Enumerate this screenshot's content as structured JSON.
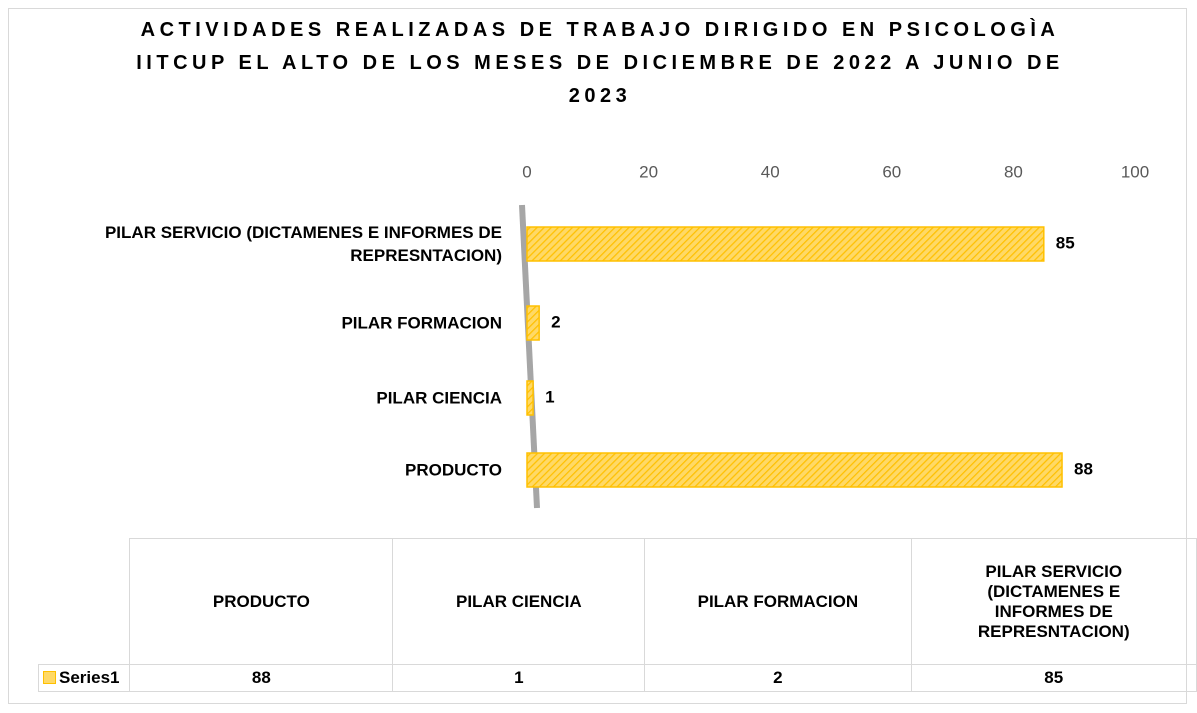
{
  "chart_data": {
    "type": "bar",
    "orientation": "horizontal",
    "title": "ACTIVIDADES REALIZADAS DE TRABAJO DIRIGIDO EN PSICOLOGÌA IITCUP EL ALTO DE LOS MESES DE DICIEMBRE DE 2022 A JUNIO DE 2023",
    "categories": [
      "PRODUCTO",
      "PILAR CIENCIA",
      "PILAR FORMACION",
      "PILAR SERVICIO (DICTAMENES E INFORMES DE REPRESNTACION)"
    ],
    "series": [
      {
        "name": "Series1",
        "color": "#ffd966",
        "border_color": "#ffc000",
        "values": [
          88,
          1,
          2,
          85
        ]
      }
    ],
    "xlim": [
      0,
      100
    ],
    "xticks": [
      0,
      20,
      40,
      60,
      80,
      100
    ],
    "grid": false,
    "data_table": true
  }
}
